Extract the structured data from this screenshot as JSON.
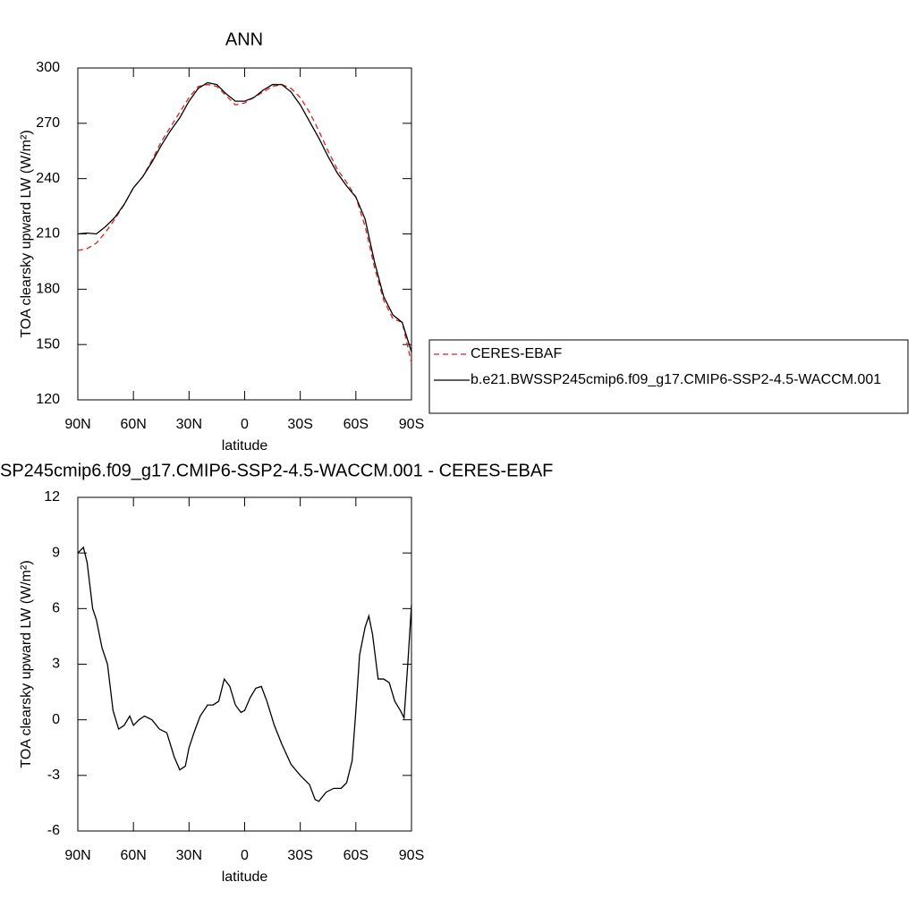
{
  "chart_data": [
    {
      "type": "line",
      "title": "ANN",
      "xlabel": "latitude",
      "ylabel": "TOA clearsky upward LW (W/m²)",
      "x": [
        90,
        85,
        80,
        75,
        70,
        65,
        60,
        55,
        50,
        45,
        40,
        35,
        30,
        25,
        20,
        15,
        10,
        5,
        0,
        -5,
        -10,
        -15,
        -20,
        -25,
        -30,
        -35,
        -40,
        -45,
        -50,
        -55,
        -60,
        -65,
        -70,
        -75,
        -80,
        -85,
        -90
      ],
      "series": [
        {
          "name": "CERES-EBAF",
          "color": "#e02020",
          "linestyle": "dashed",
          "values": [
            201,
            202,
            205,
            211,
            218,
            226,
            235,
            241,
            250,
            260,
            268,
            276,
            284,
            290,
            291,
            290,
            285,
            280,
            281,
            284,
            287,
            290,
            291,
            289,
            284,
            276,
            266,
            255,
            245,
            238,
            230,
            214,
            192,
            174,
            164,
            162,
            140
          ]
        },
        {
          "name": "b.e21.BWSSP245cmip6.f09_g17.CMIP6-SSP2-4.5-WACCM.001",
          "color": "#000000",
          "linestyle": "solid",
          "values": [
            210,
            210.5,
            210,
            214,
            219,
            226,
            235,
            241,
            249,
            258,
            266,
            273,
            282,
            289,
            292,
            291,
            286,
            282,
            282,
            284,
            288,
            291,
            291,
            287,
            280,
            271,
            262,
            252,
            243,
            236,
            230,
            218,
            195,
            176,
            166,
            162,
            146
          ]
        }
      ],
      "xlim": [
        90,
        -90
      ],
      "xticks": [
        {
          "value": 90,
          "label": "90N"
        },
        {
          "value": 60,
          "label": "60N"
        },
        {
          "value": 30,
          "label": "30N"
        },
        0,
        {
          "value": -30,
          "label": "30S"
        },
        {
          "value": -60,
          "label": "60S"
        },
        {
          "value": -90,
          "label": "90S"
        }
      ],
      "ylim": [
        120,
        300
      ],
      "yticks": [
        120,
        150,
        180,
        210,
        240,
        270,
        300
      ],
      "grid": false
    },
    {
      "type": "line",
      "title": "SP245cmip6.f09_g17.CMIP6-SSP2-4.5-WACCM.001 - CERES-EBAF",
      "xlabel": "latitude",
      "ylabel": "TOA clearsky upward LW (W/m²)",
      "x": [
        90,
        87,
        85,
        82,
        80,
        77,
        74,
        71,
        68,
        65,
        62,
        60,
        57,
        54,
        50,
        46,
        42,
        38,
        35,
        32,
        30,
        27,
        24,
        20,
        17,
        14,
        11,
        8,
        5,
        2,
        0,
        -3,
        -6,
        -9,
        -12,
        -16,
        -20,
        -25,
        -30,
        -35,
        -38,
        -40,
        -44,
        -48,
        -52,
        -55,
        -58,
        -60,
        -62,
        -65,
        -67,
        -69,
        -72,
        -75,
        -78,
        -81,
        -84,
        -86,
        -88,
        -90
      ],
      "color": "#000000",
      "values": [
        9.0,
        9.3,
        8.5,
        6.0,
        5.4,
        3.9,
        3.0,
        0.5,
        -0.5,
        -0.3,
        0.2,
        -0.3,
        0.0,
        0.2,
        0.0,
        -0.5,
        -0.7,
        -2.0,
        -2.7,
        -2.5,
        -1.5,
        -0.6,
        0.2,
        0.8,
        0.8,
        1.0,
        2.2,
        1.8,
        0.8,
        0.4,
        0.5,
        1.2,
        1.7,
        1.8,
        1.0,
        -0.3,
        -1.3,
        -2.4,
        -3.0,
        -3.5,
        -4.3,
        -4.4,
        -3.9,
        -3.7,
        -3.7,
        -3.4,
        -2.2,
        0.5,
        3.5,
        5.0,
        5.6,
        4.6,
        2.2,
        2.2,
        2.0,
        1.0,
        0.5,
        0.1,
        3.0,
        6.2
      ],
      "xlim": [
        90,
        -90
      ],
      "xticks": [
        {
          "value": 90,
          "label": "90N"
        },
        {
          "value": 60,
          "label": "60N"
        },
        {
          "value": 30,
          "label": "30N"
        },
        0,
        {
          "value": -30,
          "label": "30S"
        },
        {
          "value": -60,
          "label": "60S"
        },
        {
          "value": -90,
          "label": "90S"
        }
      ],
      "ylim": [
        -6,
        12
      ],
      "yticks": [
        -6,
        -3,
        0,
        3,
        6,
        9,
        12
      ],
      "grid": false
    }
  ]
}
